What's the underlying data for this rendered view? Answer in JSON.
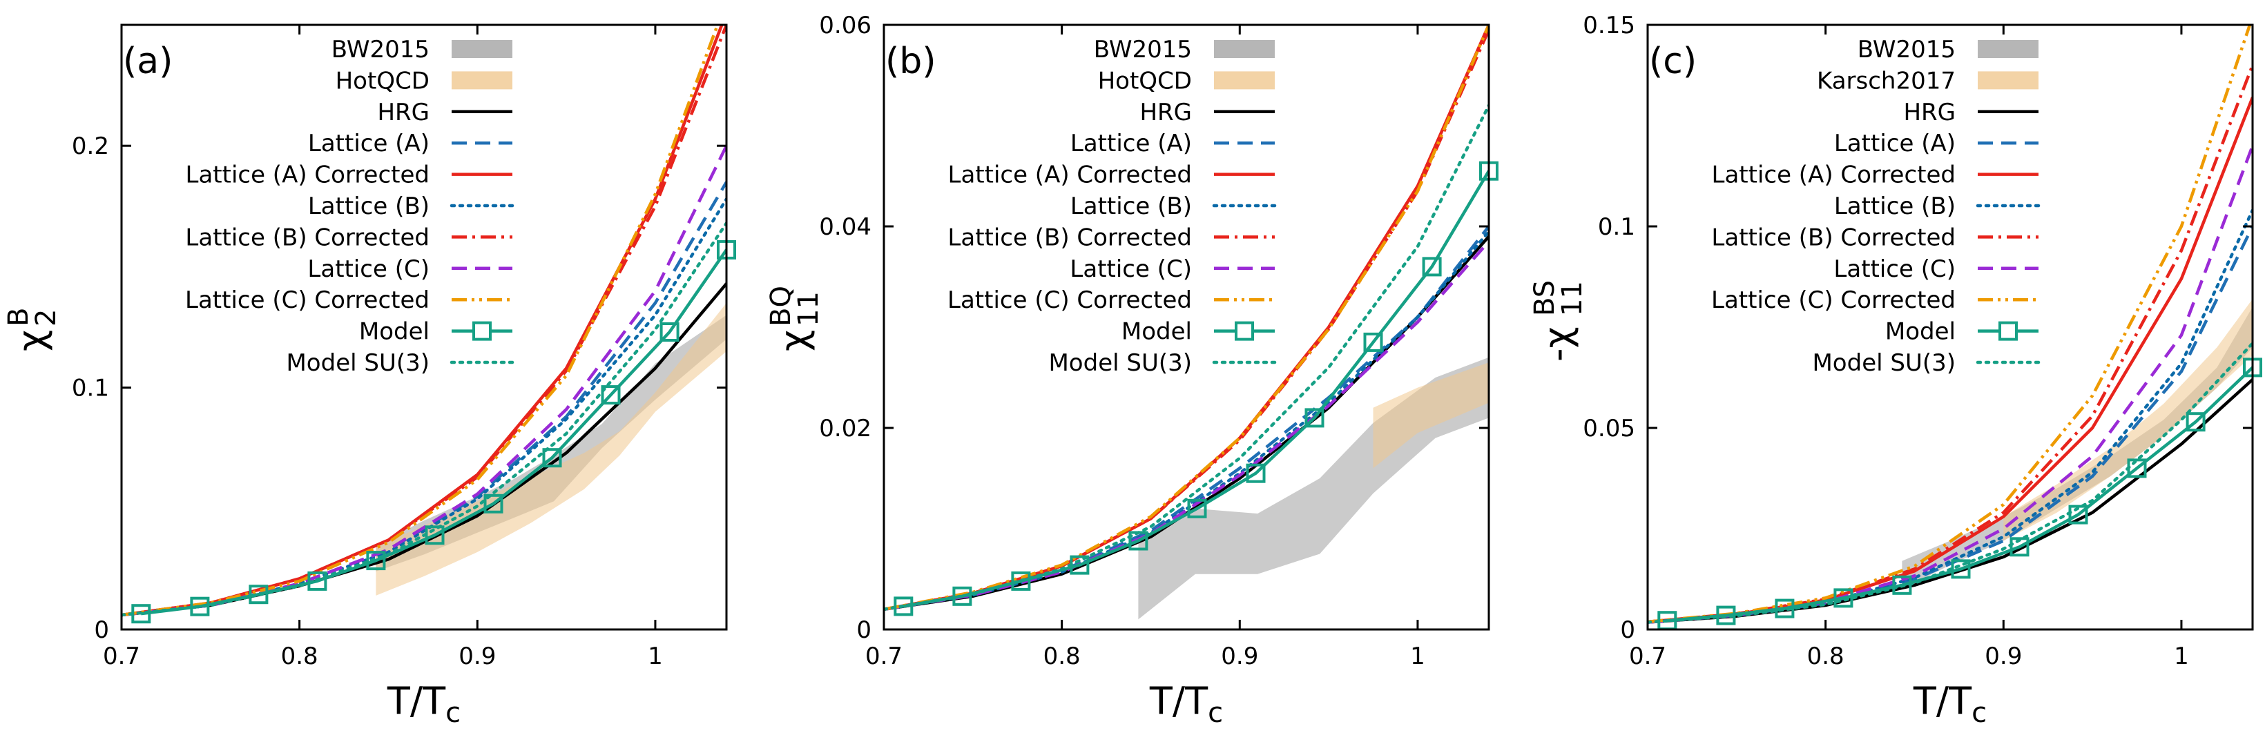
{
  "figure": {
    "series_style": {
      "BW2015": {
        "color": "#a9a9a9",
        "kind": "band",
        "opacity": 0.6
      },
      "HotQCD": {
        "color": "#f0c890",
        "kind": "band",
        "opacity": 0.55
      },
      "Karsch2017": {
        "color": "#f0c890",
        "kind": "band",
        "opacity": 0.55
      },
      "HRG": {
        "color": "#000000",
        "kind": "line",
        "dash": "solid"
      },
      "Lattice (A)": {
        "color": "#1f6fb4",
        "kind": "line",
        "dash": "dash"
      },
      "Lattice (A) Corrected": {
        "color": "#e8241c",
        "kind": "line",
        "dash": "solid"
      },
      "Lattice (B)": {
        "color": "#0a6aa8",
        "kind": "line",
        "dash": "dot"
      },
      "Lattice (B) Corrected": {
        "color": "#e8241c",
        "kind": "line",
        "dash": "dashdot"
      },
      "Lattice (C)": {
        "color": "#9a2ad6",
        "kind": "line",
        "dash": "dash"
      },
      "Lattice (C) Corrected": {
        "color": "#ee9a00",
        "kind": "line",
        "dash": "dashdotdot"
      },
      "Model": {
        "color": "#16a085",
        "kind": "line_marker",
        "dash": "solid"
      },
      "Model SU(3)": {
        "color": "#16a085",
        "kind": "line",
        "dash": "dot"
      }
    }
  },
  "chart_data": [
    {
      "id": "a",
      "type": "line",
      "panel_label": "(a)",
      "title": "",
      "xlabel": "T/T",
      "xlabel_sub": "c",
      "ylabel": "χ",
      "ylabel_sub": "2",
      "ylabel_sup": "B",
      "xlim": [
        0.7,
        1.04
      ],
      "ylim": [
        0,
        0.25
      ],
      "xticks": [
        0.7,
        0.8,
        0.9,
        1
      ],
      "xtick_labels": [
        "0.7",
        "0.8",
        "0.9",
        "1"
      ],
      "yticks": [
        0,
        0.1,
        0.2
      ],
      "ytick_labels": [
        "0",
        "0.1",
        "0.2"
      ],
      "legend_position": "top-left",
      "legend": [
        "BW2015",
        "HotQCD",
        "HRG",
        "Lattice (A)",
        "Lattice (A) Corrected",
        "Lattice (B)",
        "Lattice (B) Corrected",
        "Lattice (C)",
        "Lattice (C) Corrected",
        "Model",
        "Model SU(3)"
      ],
      "bands": [
        {
          "name": "BW2015",
          "x": [
            0.843,
            0.87,
            0.9,
            0.92,
            0.943,
            0.97,
            1.0,
            1.04
          ],
          "lower": [
            0.024,
            0.031,
            0.04,
            0.046,
            0.053,
            0.075,
            0.095,
            0.12
          ],
          "upper": [
            0.035,
            0.045,
            0.055,
            0.062,
            0.072,
            0.085,
            0.11,
            0.13
          ]
        },
        {
          "name": "HotQCD",
          "x": [
            0.843,
            0.87,
            0.9,
            0.93,
            0.96,
            0.98,
            1.0,
            1.04
          ],
          "lower": [
            0.014,
            0.022,
            0.032,
            0.044,
            0.058,
            0.072,
            0.09,
            0.115
          ],
          "upper": [
            0.034,
            0.043,
            0.053,
            0.063,
            0.073,
            0.082,
            0.098,
            0.135
          ]
        }
      ],
      "series": [
        {
          "name": "HRG",
          "x": [
            0.7,
            0.75,
            0.8,
            0.85,
            0.9,
            0.95,
            1.0,
            1.04
          ],
          "values": [
            0.006,
            0.01,
            0.018,
            0.029,
            0.047,
            0.073,
            0.108,
            0.143
          ]
        },
        {
          "name": "Lattice (A)",
          "x": [
            0.7,
            0.75,
            0.8,
            0.85,
            0.9,
            0.95,
            1.0,
            1.04
          ],
          "values": [
            0.006,
            0.01,
            0.019,
            0.033,
            0.055,
            0.088,
            0.135,
            0.185
          ]
        },
        {
          "name": "Lattice (A) Corrected",
          "x": [
            0.7,
            0.75,
            0.8,
            0.85,
            0.9,
            0.95,
            1.0,
            1.04
          ],
          "values": [
            0.006,
            0.011,
            0.021,
            0.037,
            0.064,
            0.108,
            0.178,
            0.255
          ]
        },
        {
          "name": "Lattice (B)",
          "x": [
            0.7,
            0.75,
            0.8,
            0.85,
            0.9,
            0.95,
            1.0,
            1.04
          ],
          "values": [
            0.006,
            0.01,
            0.019,
            0.032,
            0.054,
            0.087,
            0.13,
            0.178
          ]
        },
        {
          "name": "Lattice (B) Corrected",
          "x": [
            0.7,
            0.75,
            0.8,
            0.85,
            0.9,
            0.95,
            1.0,
            1.04
          ],
          "values": [
            0.006,
            0.011,
            0.021,
            0.037,
            0.063,
            0.107,
            0.175,
            0.25
          ]
        },
        {
          "name": "Lattice (C)",
          "x": [
            0.7,
            0.75,
            0.8,
            0.85,
            0.9,
            0.95,
            1.0,
            1.04
          ],
          "values": [
            0.006,
            0.01,
            0.019,
            0.033,
            0.056,
            0.091,
            0.14,
            0.2
          ]
        },
        {
          "name": "Lattice (C) Corrected",
          "x": [
            0.7,
            0.75,
            0.8,
            0.85,
            0.9,
            0.95,
            1.0,
            1.04
          ],
          "values": [
            0.006,
            0.011,
            0.02,
            0.036,
            0.062,
            0.105,
            0.18,
            0.26
          ]
        },
        {
          "name": "Model",
          "x": [
            0.711,
            0.744,
            0.777,
            0.81,
            0.843,
            0.876,
            0.909,
            0.942,
            0.975,
            1.008,
            1.04
          ],
          "values": [
            0.0065,
            0.0095,
            0.0145,
            0.02,
            0.0285,
            0.039,
            0.052,
            0.071,
            0.097,
            0.123,
            0.157
          ],
          "markers": true
        },
        {
          "name": "Model SU(3)",
          "x": [
            0.7,
            0.75,
            0.8,
            0.85,
            0.9,
            0.95,
            1.0,
            1.04
          ],
          "values": [
            0.006,
            0.01,
            0.018,
            0.031,
            0.051,
            0.081,
            0.124,
            0.168
          ]
        }
      ]
    },
    {
      "id": "b",
      "type": "line",
      "panel_label": "(b)",
      "title": "",
      "xlabel": "T/T",
      "xlabel_sub": "c",
      "ylabel": "χ",
      "ylabel_sub": "11",
      "ylabel_sup": "BQ",
      "xlim": [
        0.7,
        1.04
      ],
      "ylim": [
        0,
        0.06
      ],
      "xticks": [
        0.7,
        0.8,
        0.9,
        1
      ],
      "xtick_labels": [
        "0.7",
        "0.8",
        "0.9",
        "1"
      ],
      "yticks": [
        0,
        0.02,
        0.04,
        0.06
      ],
      "ytick_labels": [
        "0",
        "0.02",
        "0.04",
        "0.06"
      ],
      "legend_position": "top-left",
      "legend": [
        "BW2015",
        "HotQCD",
        "HRG",
        "Lattice (A)",
        "Lattice (A) Corrected",
        "Lattice (B)",
        "Lattice (B) Corrected",
        "Lattice (C)",
        "Lattice (C) Corrected",
        "Model",
        "Model SU(3)"
      ],
      "bands": [
        {
          "name": "BW2015",
          "x": [
            0.843,
            0.875,
            0.91,
            0.945,
            0.975,
            1.01,
            1.04
          ],
          "lower": [
            0.001,
            0.0055,
            0.0055,
            0.0075,
            0.0135,
            0.019,
            0.021
          ],
          "upper": [
            0.0085,
            0.012,
            0.0115,
            0.015,
            0.0205,
            0.025,
            0.027
          ]
        },
        {
          "name": "HotQCD",
          "x": [
            0.975,
            1.0,
            1.04
          ],
          "lower": [
            0.016,
            0.0195,
            0.0225
          ],
          "upper": [
            0.022,
            0.024,
            0.0265
          ]
        }
      ],
      "series": [
        {
          "name": "HRG",
          "x": [
            0.7,
            0.75,
            0.8,
            0.85,
            0.9,
            0.95,
            1.0,
            1.04
          ],
          "values": [
            0.002,
            0.0033,
            0.0055,
            0.0092,
            0.015,
            0.022,
            0.031,
            0.039
          ]
        },
        {
          "name": "Lattice (A)",
          "x": [
            0.7,
            0.75,
            0.8,
            0.85,
            0.9,
            0.95,
            1.0,
            1.04
          ],
          "values": [
            0.002,
            0.0034,
            0.0058,
            0.0098,
            0.016,
            0.023,
            0.031,
            0.04
          ]
        },
        {
          "name": "Lattice (A) Corrected",
          "x": [
            0.7,
            0.75,
            0.8,
            0.85,
            0.9,
            0.95,
            1.0,
            1.04
          ],
          "values": [
            0.002,
            0.0036,
            0.0063,
            0.011,
            0.019,
            0.03,
            0.044,
            0.06
          ]
        },
        {
          "name": "Lattice (B)",
          "x": [
            0.7,
            0.75,
            0.8,
            0.85,
            0.9,
            0.95,
            1.0,
            1.04
          ],
          "values": [
            0.002,
            0.0034,
            0.0057,
            0.0096,
            0.0155,
            0.0225,
            0.031,
            0.0395
          ]
        },
        {
          "name": "Lattice (B) Corrected",
          "x": [
            0.7,
            0.75,
            0.8,
            0.85,
            0.9,
            0.95,
            1.0,
            1.04
          ],
          "values": [
            0.002,
            0.0036,
            0.0063,
            0.011,
            0.0188,
            0.0298,
            0.0435,
            0.0595
          ]
        },
        {
          "name": "Lattice (C)",
          "x": [
            0.7,
            0.75,
            0.8,
            0.85,
            0.9,
            0.95,
            1.0,
            1.04
          ],
          "values": [
            0.002,
            0.0034,
            0.0057,
            0.0095,
            0.0153,
            0.0222,
            0.0305,
            0.0385
          ]
        },
        {
          "name": "Lattice (C) Corrected",
          "x": [
            0.7,
            0.75,
            0.8,
            0.85,
            0.9,
            0.95,
            1.0,
            1.04
          ],
          "values": [
            0.002,
            0.0037,
            0.0064,
            0.0112,
            0.019,
            0.0298,
            0.0435,
            0.06
          ]
        },
        {
          "name": "Model",
          "x": [
            0.711,
            0.744,
            0.777,
            0.81,
            0.843,
            0.876,
            0.909,
            0.942,
            0.975,
            1.008,
            1.04
          ],
          "values": [
            0.0023,
            0.0033,
            0.0048,
            0.0064,
            0.0088,
            0.012,
            0.0155,
            0.021,
            0.0285,
            0.036,
            0.0455
          ],
          "markers": true
        },
        {
          "name": "Model SU(3)",
          "x": [
            0.7,
            0.75,
            0.8,
            0.85,
            0.9,
            0.95,
            1.0,
            1.04
          ],
          "values": [
            0.002,
            0.0035,
            0.006,
            0.0102,
            0.017,
            0.026,
            0.038,
            0.052
          ]
        }
      ]
    },
    {
      "id": "c",
      "type": "line",
      "panel_label": "(c)",
      "title": "",
      "xlabel": "T/T",
      "xlabel_sub": "c",
      "ylabel": "-χ",
      "ylabel_sub": "11",
      "ylabel_sup": "BS",
      "xlim": [
        0.7,
        1.04
      ],
      "ylim": [
        0,
        0.15
      ],
      "xticks": [
        0.7,
        0.8,
        0.9,
        1
      ],
      "xtick_labels": [
        "0.7",
        "0.8",
        "0.9",
        "1"
      ],
      "yticks": [
        0,
        0.05,
        0.1,
        0.15
      ],
      "ytick_labels": [
        "0",
        "0.05",
        "0.1",
        "0.15"
      ],
      "legend_position": "top-left",
      "legend": [
        "BW2015",
        "Karsch2017",
        "HRG",
        "Lattice (A)",
        "Lattice (A) Corrected",
        "Lattice (B)",
        "Lattice (B) Corrected",
        "Lattice (C)",
        "Lattice (C) Corrected",
        "Model",
        "Model SU(3)"
      ],
      "bands": [
        {
          "name": "BW2015",
          "x": [
            0.843,
            0.87,
            0.9,
            0.93,
            0.96,
            0.99,
            1.02,
            1.04
          ],
          "lower": [
            0.01,
            0.016,
            0.022,
            0.03,
            0.038,
            0.048,
            0.06,
            0.07
          ],
          "upper": [
            0.017,
            0.022,
            0.028,
            0.035,
            0.043,
            0.052,
            0.065,
            0.08
          ]
        },
        {
          "name": "Karsch2017",
          "x": [
            0.9,
            0.93,
            0.96,
            0.99,
            1.02,
            1.04
          ],
          "lower": [
            0.022,
            0.029,
            0.038,
            0.048,
            0.06,
            0.068
          ],
          "upper": [
            0.028,
            0.036,
            0.045,
            0.056,
            0.07,
            0.082
          ]
        }
      ],
      "series": [
        {
          "name": "HRG",
          "x": [
            0.7,
            0.75,
            0.8,
            0.85,
            0.9,
            0.95,
            1.0,
            1.04
          ],
          "values": [
            0.0018,
            0.0033,
            0.006,
            0.011,
            0.018,
            0.029,
            0.046,
            0.062
          ]
        },
        {
          "name": "Lattice (A)",
          "x": [
            0.7,
            0.75,
            0.8,
            0.85,
            0.9,
            0.95,
            1.0,
            1.04
          ],
          "values": [
            0.0018,
            0.0035,
            0.0065,
            0.0125,
            0.022,
            0.038,
            0.064,
            0.1
          ]
        },
        {
          "name": "Lattice (A) Corrected",
          "x": [
            0.7,
            0.75,
            0.8,
            0.85,
            0.9,
            0.95,
            1.0,
            1.04
          ],
          "values": [
            0.0019,
            0.0038,
            0.0073,
            0.0145,
            0.028,
            0.05,
            0.087,
            0.132
          ]
        },
        {
          "name": "Lattice (B)",
          "x": [
            0.7,
            0.75,
            0.8,
            0.85,
            0.9,
            0.95,
            1.0,
            1.04
          ],
          "values": [
            0.0018,
            0.0035,
            0.0066,
            0.0128,
            0.023,
            0.039,
            0.066,
            0.104
          ]
        },
        {
          "name": "Lattice (B) Corrected",
          "x": [
            0.7,
            0.75,
            0.8,
            0.85,
            0.9,
            0.95,
            1.0,
            1.04
          ],
          "values": [
            0.0019,
            0.0039,
            0.0075,
            0.015,
            0.029,
            0.053,
            0.094,
            0.14
          ]
        },
        {
          "name": "Lattice (C)",
          "x": [
            0.7,
            0.75,
            0.8,
            0.85,
            0.9,
            0.95,
            1.0,
            1.04
          ],
          "values": [
            0.0018,
            0.0036,
            0.0068,
            0.0133,
            0.025,
            0.043,
            0.073,
            0.12
          ]
        },
        {
          "name": "Lattice (C) Corrected",
          "x": [
            0.7,
            0.75,
            0.8,
            0.85,
            0.9,
            0.95,
            1.0,
            1.04
          ],
          "values": [
            0.0019,
            0.004,
            0.0078,
            0.0157,
            0.031,
            0.058,
            0.1,
            0.152
          ]
        },
        {
          "name": "Model",
          "x": [
            0.711,
            0.744,
            0.777,
            0.81,
            0.843,
            0.876,
            0.909,
            0.942,
            0.975,
            1.008,
            1.04
          ],
          "values": [
            0.0022,
            0.0035,
            0.0052,
            0.0078,
            0.011,
            0.015,
            0.0205,
            0.0285,
            0.04,
            0.0515,
            0.065
          ],
          "markers": true
        },
        {
          "name": "Model SU(3)",
          "x": [
            0.7,
            0.75,
            0.8,
            0.85,
            0.9,
            0.95,
            1.0,
            1.04
          ],
          "values": [
            0.0018,
            0.0034,
            0.0062,
            0.0115,
            0.02,
            0.032,
            0.052,
            0.071
          ]
        }
      ]
    }
  ]
}
